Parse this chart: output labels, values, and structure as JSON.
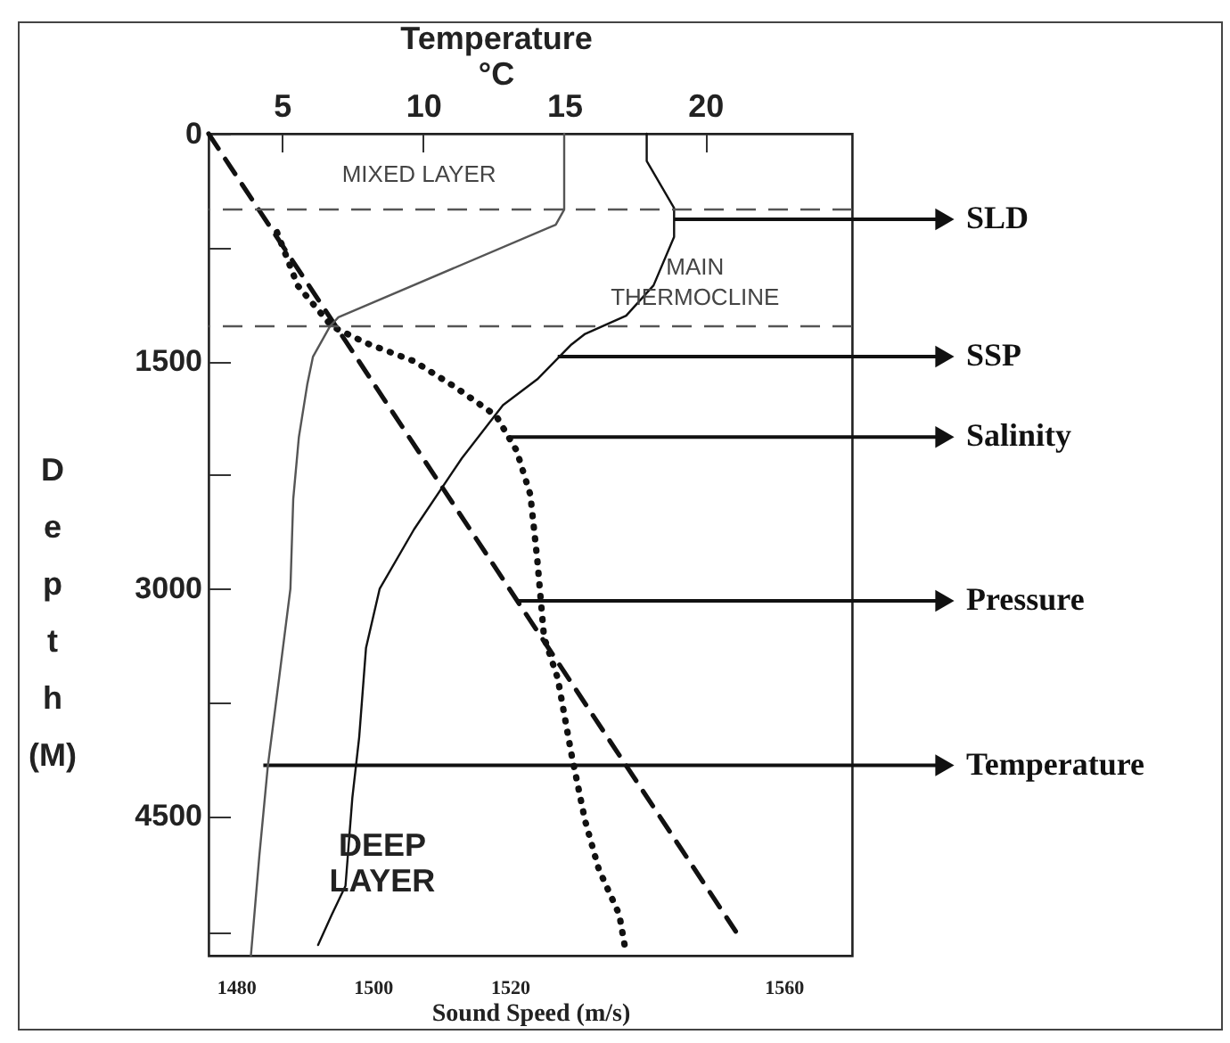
{
  "chart_data": {
    "type": "line",
    "xlabel": "Sound Speed (m/s)",
    "ylabel": "Depth (M)",
    "x2label": "Temperature\n°C",
    "xlim": [
      1476,
      1570
    ],
    "xticks": [
      1480,
      1500,
      1520,
      1560
    ],
    "x2lim": [
      2.4,
      25.2
    ],
    "x2ticks": [
      5,
      10,
      15,
      20
    ],
    "ylim": [
      5420,
      0
    ],
    "yticks": [
      0,
      {
        "value": 750,
        "label": null
      },
      1500,
      {
        "value": 2250,
        "label": null
      },
      3000,
      {
        "value": 3750,
        "label": null
      },
      4500,
      {
        "value": 5270,
        "label": null
      }
    ],
    "series": [
      {
        "axis": "x2",
        "color": "#555555",
        "line_style": "solid",
        "x": [
          15,
          15,
          14.7,
          7,
          6.7,
          6.1,
          5.9,
          5.6,
          5.4,
          5.3,
          4.9,
          4.5,
          4.2,
          3.9
        ],
        "values": [
          0,
          500,
          600,
          1210,
          1270,
          1470,
          1650,
          2000,
          2410,
          3000,
          3590,
          4170,
          4760,
          5420
        ]
      },
      {
        "color": "#111111",
        "line_style": "solid",
        "x": [
          1540,
          1540,
          1544,
          1544,
          1541,
          1537,
          1531,
          1529,
          1524,
          1519,
          1513,
          1506,
          1501,
          1499,
          1498,
          1497,
          1496,
          1494,
          1492
        ],
        "values": [
          0,
          180,
          490,
          680,
          1000,
          1200,
          1320,
          1390,
          1620,
          1790,
          2140,
          2610,
          3000,
          3390,
          3980,
          4380,
          4960,
          5150,
          5350
        ]
      },
      {
        "color": "#111111",
        "line_style": "dotted",
        "x": [
          1486,
          1489,
          1494,
          1499,
          1506,
          1512,
          1518,
          1521,
          1523,
          1524,
          1525,
          1527,
          1529,
          1531,
          1533,
          1536,
          1537
        ],
        "values": [
          650,
          1000,
          1270,
          1380,
          1500,
          1670,
          1860,
          2090,
          2380,
          2800,
          3320,
          3590,
          4090,
          4530,
          4850,
          5150,
          5410
        ]
      },
      {
        "color": "#111111",
        "line_style": "dashed",
        "x": [
          1476,
          1553
        ],
        "values": [
          0,
          5260
        ]
      }
    ],
    "ref_lines": [
      {
        "axis": "y",
        "value": 500,
        "color": "#555555",
        "line_style": "dashed"
      },
      {
        "axis": "y",
        "value": 1270,
        "color": "#555555",
        "line_style": "dashed"
      }
    ],
    "annotations": [
      "MIXED LAYER",
      "MAIN\nTHERMOCLINE",
      "DEEP\nLAYER",
      {
        "text": "SLD",
        "x": 1544,
        "y": 565
      },
      {
        "text": "SSP",
        "x": 1527,
        "y": 1470
      },
      {
        "text": "Salinity",
        "x": 1520,
        "y": 2000
      },
      {
        "text": "Pressure",
        "x": 1521,
        "y": 3080
      },
      {
        "text": "Temperature",
        "x": 1484,
        "y": 4165
      }
    ]
  }
}
